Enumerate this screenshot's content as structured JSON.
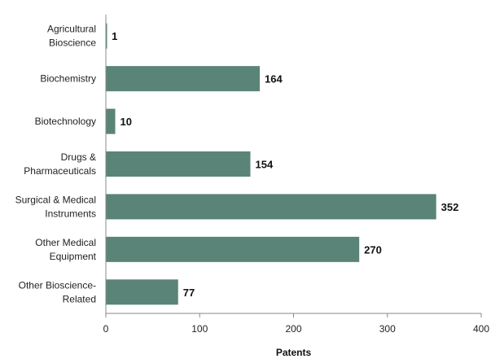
{
  "chart_data": {
    "type": "bar",
    "orientation": "horizontal",
    "categories": [
      [
        "Agricultural",
        "Bioscience"
      ],
      [
        "Biochemistry"
      ],
      [
        "Biotechnology"
      ],
      [
        "Drugs &",
        "Pharmaceuticals"
      ],
      [
        "Surgical & Medical",
        "Instruments"
      ],
      [
        "Other Medical",
        "Equipment"
      ],
      [
        "Other Bioscience-",
        "Related"
      ]
    ],
    "values": [
      1,
      164,
      10,
      154,
      352,
      270,
      77
    ],
    "data_labels": [
      "1",
      "164",
      "10",
      "154",
      "352",
      "270",
      "77"
    ],
    "xlabel": "Patents",
    "ylabel": "",
    "xlim": [
      0,
      400
    ],
    "xticks": [
      0,
      100,
      200,
      300,
      400
    ],
    "xtick_labels": [
      "0",
      "100",
      "200",
      "300",
      "400"
    ],
    "grid": false,
    "legend": "none",
    "bar_color": "#5a8478"
  }
}
